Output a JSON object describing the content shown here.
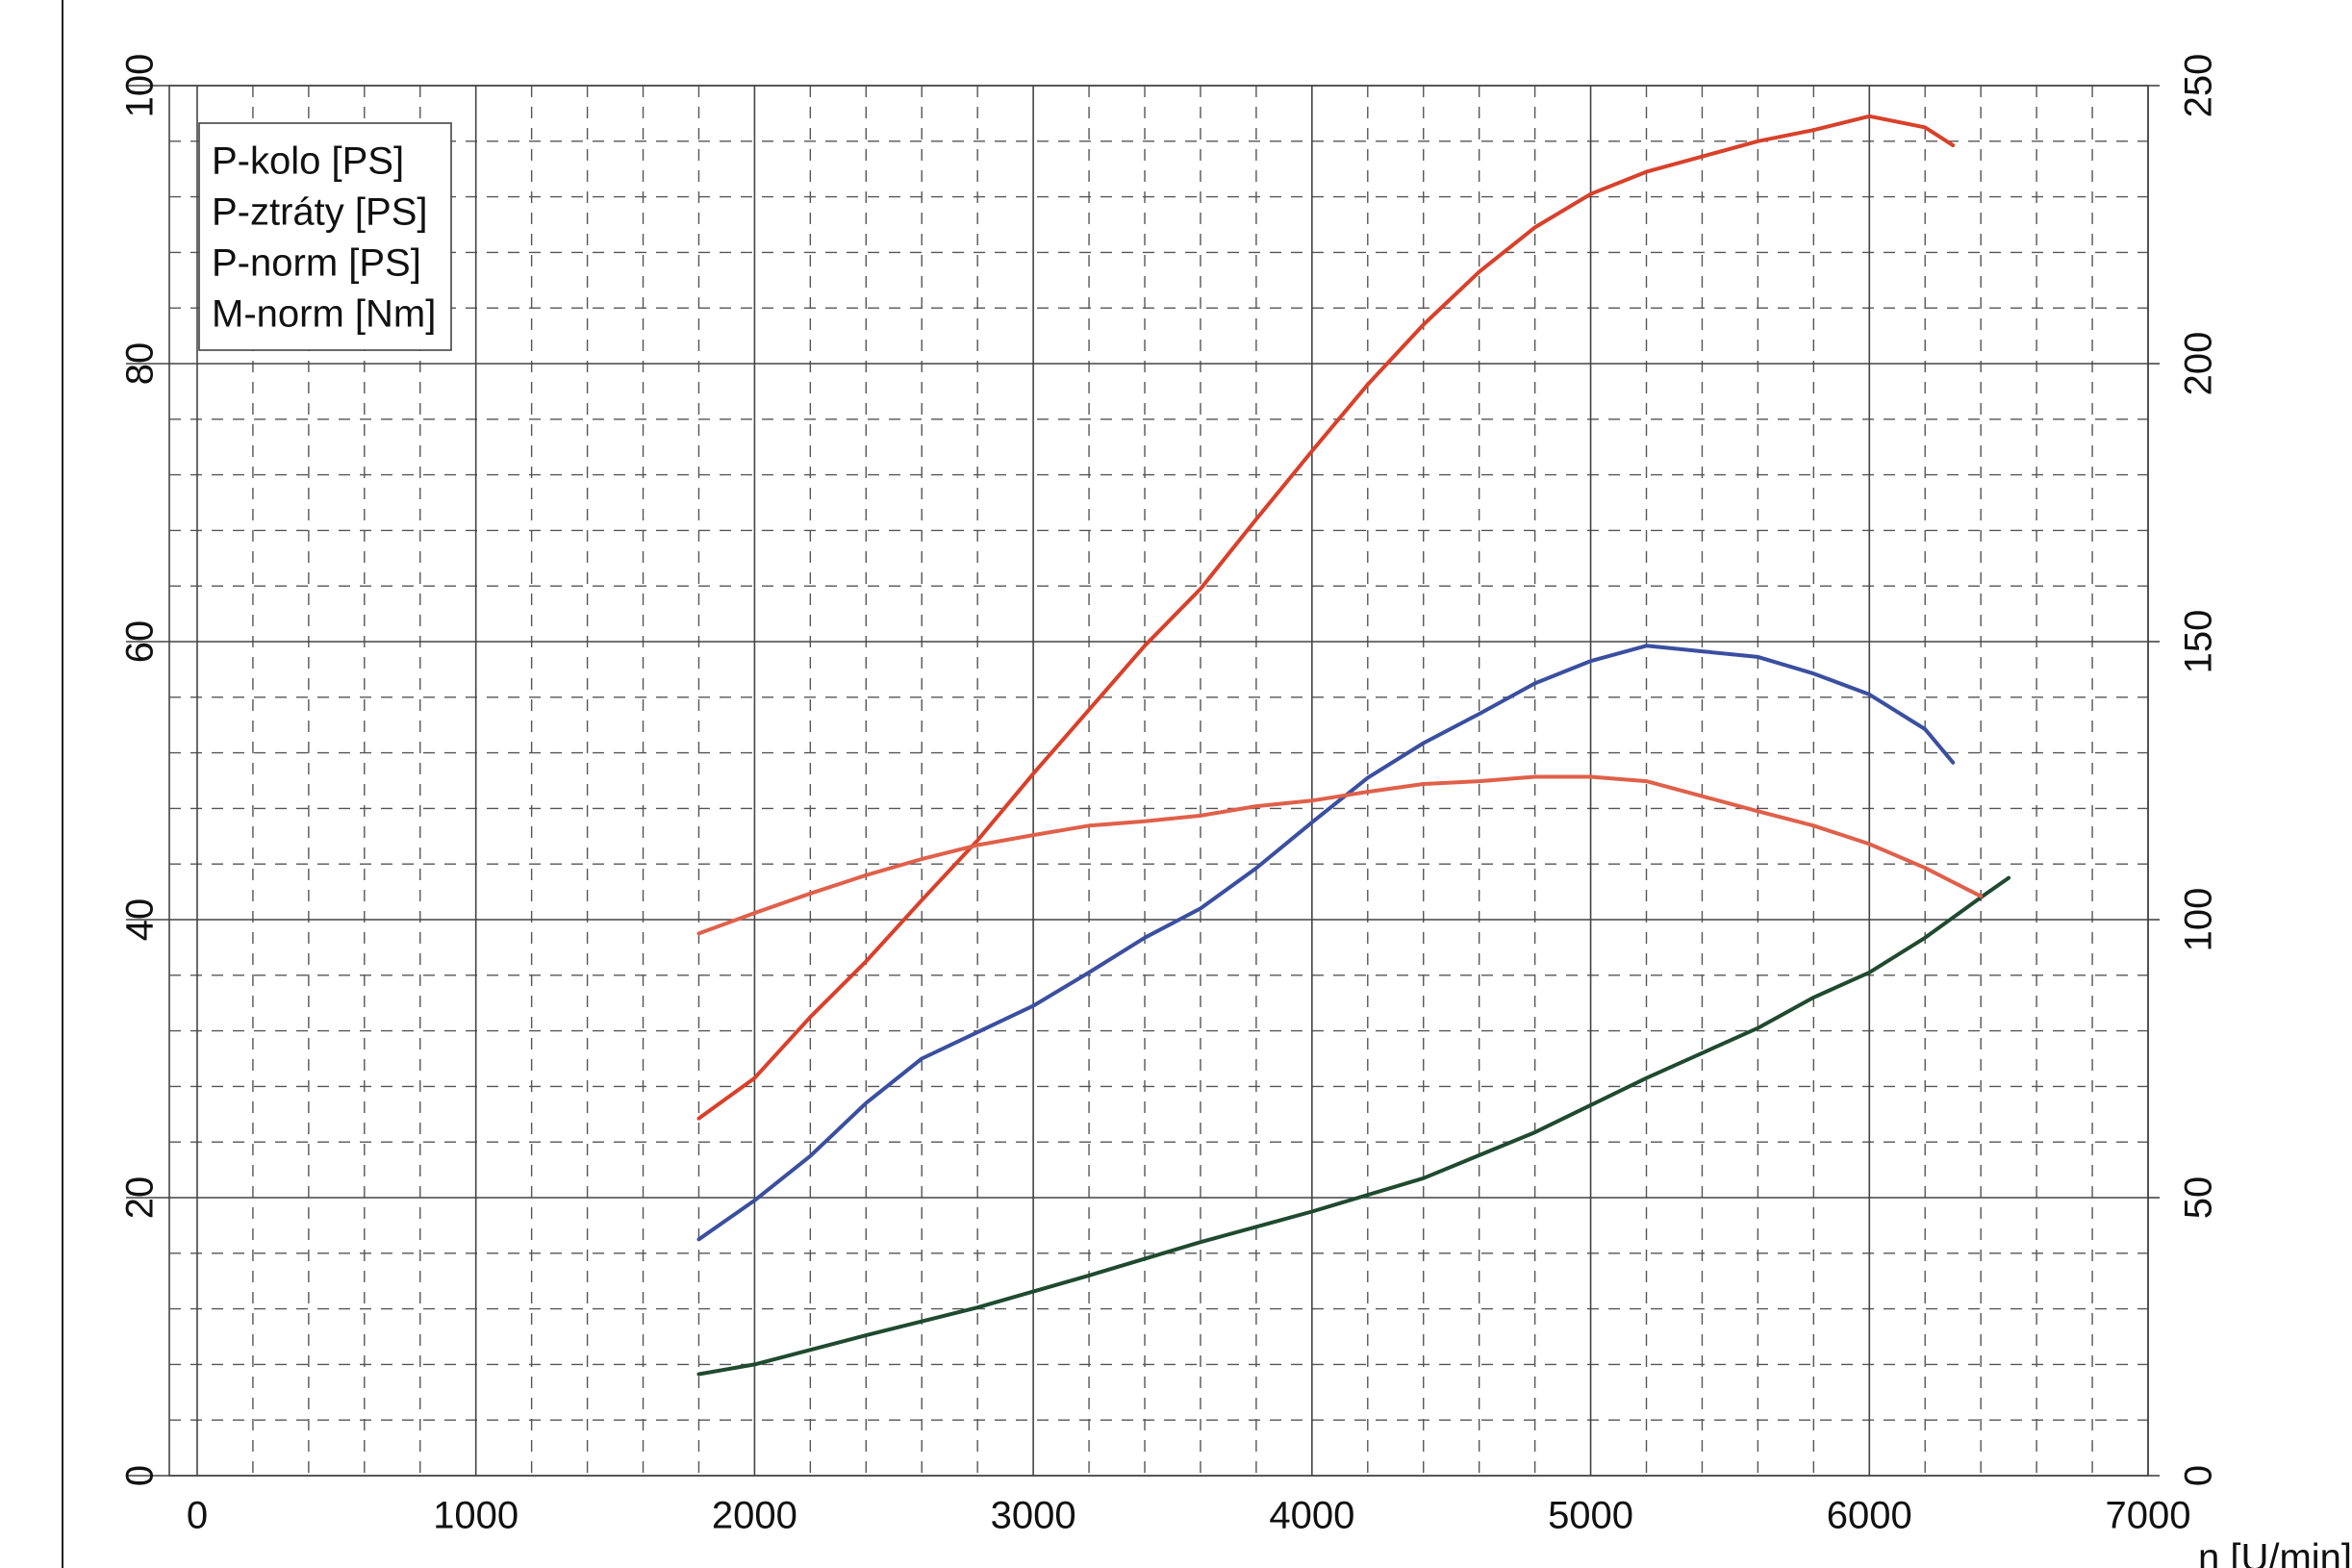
{
  "chart_data": {
    "type": "line",
    "xlabel": "n [U/min]",
    "xlim": [
      -100,
      7000
    ],
    "xticks": [
      0,
      1000,
      2000,
      3000,
      4000,
      5000,
      6000,
      7000
    ],
    "x_minor_ticks": [
      200,
      400,
      600,
      800,
      1200,
      1400,
      1600,
      1800,
      2200,
      2400,
      2600,
      2800,
      3200,
      3400,
      3600,
      3800,
      4200,
      4400,
      4600,
      4800,
      5200,
      5400,
      5600,
      5800,
      6200,
      6400,
      6600,
      6800
    ],
    "ylim": [
      0,
      100
    ],
    "yticks": [
      0,
      20,
      40,
      60,
      80,
      100
    ],
    "y_minor_ticks": [
      4,
      8,
      12,
      16,
      24,
      28,
      32,
      36,
      44,
      48,
      52,
      56,
      64,
      68,
      72,
      76,
      84,
      88,
      92,
      96
    ],
    "y2lim": [
      0,
      250
    ],
    "y2ticks": [
      0,
      50,
      100,
      150,
      200,
      250
    ],
    "y2_color": "#e8553f",
    "grid": true,
    "legend": "upper left",
    "series": [
      {
        "name": "P-kolo [PS]",
        "color": "#3a4fa0",
        "x": [
          1800,
          2000,
          2200,
          2400,
          2600,
          3000,
          3200,
          3400,
          3600,
          3800,
          4000,
          4200,
          4400,
          4600,
          4800,
          5000,
          5200,
          5400,
          5600,
          5800,
          6000,
          6200,
          6300
        ],
        "values": [
          17.0,
          19.8,
          23.0,
          26.8,
          30.0,
          33.8,
          36.2,
          38.7,
          40.8,
          43.7,
          47.0,
          50.2,
          52.7,
          54.8,
          57.0,
          58.6,
          59.7,
          59.3,
          58.9,
          57.7,
          56.2,
          53.7,
          51.3
        ]
      },
      {
        "name": "P-ztráty [PS]",
        "color": "#1f4a30",
        "x": [
          1800,
          2000,
          2400,
          2800,
          3200,
          3600,
          4000,
          4400,
          4800,
          5200,
          5600,
          5800,
          6000,
          6200,
          6400,
          6500
        ],
        "values": [
          7.3,
          8.0,
          10.1,
          12.1,
          14.4,
          16.8,
          19.0,
          21.4,
          24.7,
          28.6,
          32.2,
          34.4,
          36.2,
          38.7,
          41.6,
          43.0
        ]
      },
      {
        "name": "P-norm [PS]",
        "color": "#d9402a",
        "x": [
          1800,
          2000,
          2200,
          2400,
          2600,
          2800,
          3000,
          3200,
          3400,
          3600,
          3800,
          4000,
          4200,
          4400,
          4600,
          4800,
          5000,
          5200,
          5400,
          5600,
          5800,
          6000,
          6200,
          6300
        ],
        "values": [
          25.7,
          28.6,
          33.0,
          37.0,
          41.4,
          45.7,
          50.5,
          55.1,
          59.7,
          63.8,
          68.8,
          73.7,
          78.5,
          82.8,
          86.6,
          89.8,
          92.2,
          93.8,
          94.9,
          96.0,
          96.8,
          97.8,
          97.0,
          95.7
        ]
      },
      {
        "name": "M-norm [Nm]",
        "color": "#e0604a",
        "axis": "y2",
        "x": [
          1800,
          2000,
          2200,
          2400,
          2600,
          2800,
          3000,
          3200,
          3400,
          3600,
          3800,
          4000,
          4200,
          4400,
          4600,
          4800,
          5000,
          5200,
          5400,
          5600,
          5800,
          6000,
          6200,
          6400
        ],
        "values": [
          97.5,
          101.2,
          104.7,
          108.0,
          110.9,
          113.4,
          115.2,
          116.9,
          117.7,
          118.7,
          120.4,
          121.4,
          123.0,
          124.4,
          124.9,
          125.7,
          125.7,
          124.9,
          122.2,
          119.5,
          116.9,
          113.6,
          109.3,
          104.2
        ]
      }
    ]
  }
}
